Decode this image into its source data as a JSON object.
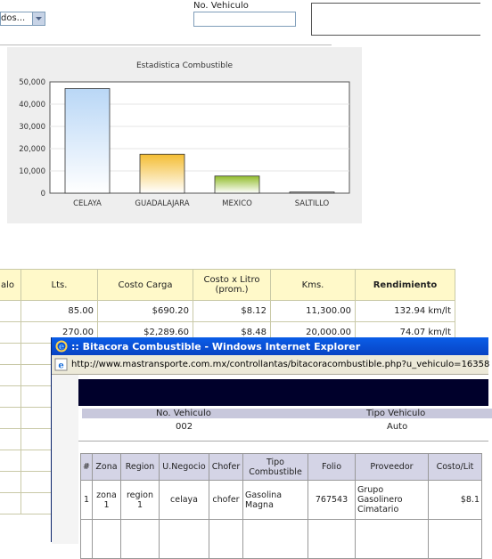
{
  "form": {
    "select_value": "dos...",
    "vehicle_label": "No. Vehiculo",
    "vehicle_value": ""
  },
  "chart_data": {
    "type": "bar",
    "title": "Estadistica Combustible",
    "categories": [
      "CELAYA",
      "GUADALAJARA",
      "MEXICO",
      "SALTILLO"
    ],
    "values": [
      47000,
      17500,
      7700,
      500
    ],
    "colors": [
      "#b9d7f6",
      "#f4bd33",
      "#92bd2c",
      "#999999"
    ],
    "yticks": [
      "50,000",
      "40,000",
      "30,000",
      "20,000",
      "10,000",
      "0"
    ],
    "ylim": [
      0,
      50000
    ],
    "xlabel": "",
    "ylabel": ""
  },
  "main_table": {
    "headers": [
      "alo",
      "Lts.",
      "Costo Carga",
      "Costo x Litro (prom.)",
      "Kms.",
      "Rendimiento"
    ],
    "rows": [
      [
        "",
        "85.00",
        "$690.20",
        "$8.12",
        "11,300.00",
        "132.94 km/lt"
      ],
      [
        "",
        "270.00",
        "$2,289.60",
        "$8.48",
        "20,000.00",
        "74.07 km/lt"
      ]
    ]
  },
  "ie": {
    "title": ":: Bitacora Combustible - Windows Internet Explorer",
    "url": "http://www.mastransporte.com.mx/controllantas/bitacoracombustible.php?u_vehiculo=16358",
    "vehicle_header": "No. Vehiculo",
    "type_header": "Tipo Vehiculo",
    "vehicle_value": "002",
    "type_value": "Auto",
    "table": {
      "headers": [
        "#",
        "Zona",
        "Region",
        "U.Negocio",
        "Chofer",
        "Tipo Combustible",
        "Folio",
        "Proveedor",
        "Costo/Lit"
      ],
      "rows": [
        [
          "1",
          "zona 1",
          "region 1",
          "celaya",
          "chofer",
          "Gasolina Magna",
          "767543",
          "Grupo Gasolinero Cimatario",
          "$8.1"
        ]
      ]
    }
  }
}
